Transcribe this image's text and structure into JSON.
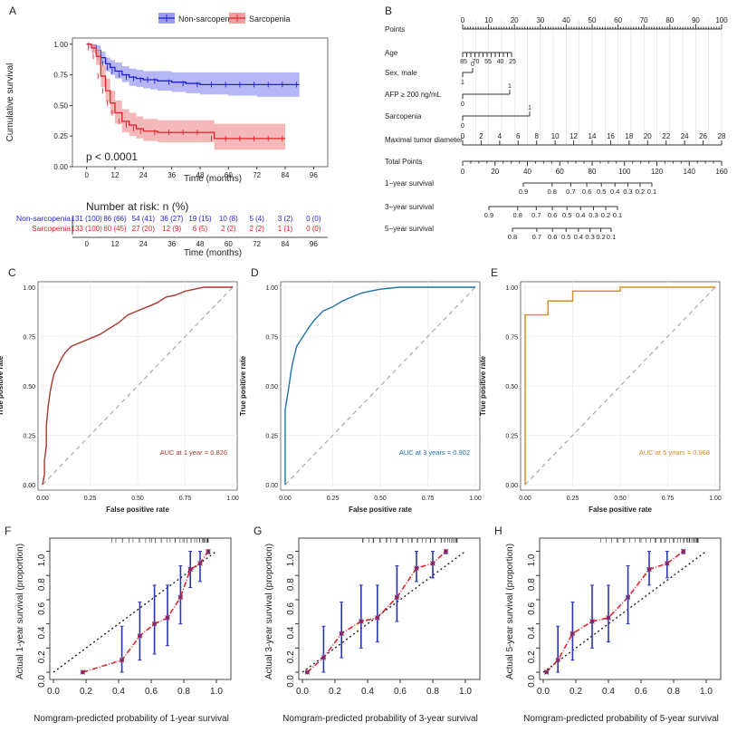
{
  "panels": {
    "A": "A",
    "B": "B",
    "C": "C",
    "D": "D",
    "E": "E",
    "F": "F",
    "G": "G",
    "H": "H"
  },
  "colors": {
    "blue": "#1f1fd6",
    "red": "#e0232a",
    "blue_band": "#9e9ef0",
    "red_band": "#f2a0a0",
    "roc1": "#a8372c",
    "roc3": "#2072a6",
    "roc5": "#d08b22",
    "calib_red": "#e0232a",
    "calib_blue": "#2a35b0"
  },
  "chart_data": [
    {
      "id": "km",
      "type": "line",
      "panel": "A",
      "legend": [
        "Non-sarcopenia",
        "Sarcopenia"
      ],
      "xlabel": "Time (months)",
      "ylabel": "Cumulative survival",
      "xticks": [
        0,
        12,
        24,
        36,
        48,
        60,
        72,
        84,
        96
      ],
      "yticks": [
        "0.00",
        "0.25",
        "0.50",
        "0.75",
        "1.00"
      ],
      "xlim": [
        -6,
        102
      ],
      "ylim": [
        0,
        1.05
      ],
      "pvalue": "p < 0.0001",
      "series": [
        {
          "name": "Non-sarcopenia",
          "x": [
            0,
            2,
            4,
            6,
            8,
            10,
            12,
            15,
            18,
            21,
            24,
            27,
            30,
            36,
            42,
            48,
            54,
            60,
            66,
            72,
            78,
            84,
            90
          ],
          "y": [
            1.0,
            0.99,
            0.95,
            0.89,
            0.84,
            0.81,
            0.78,
            0.75,
            0.73,
            0.72,
            0.71,
            0.71,
            0.7,
            0.69,
            0.68,
            0.67,
            0.67,
            0.67,
            0.67,
            0.67,
            0.67,
            0.67,
            0.67
          ],
          "lo": [
            1.0,
            0.97,
            0.91,
            0.84,
            0.78,
            0.75,
            0.72,
            0.69,
            0.66,
            0.65,
            0.64,
            0.63,
            0.62,
            0.61,
            0.6,
            0.59,
            0.59,
            0.58,
            0.58,
            0.57,
            0.57,
            0.57,
            0.57
          ],
          "hi": [
            1.0,
            1.0,
            0.99,
            0.94,
            0.89,
            0.87,
            0.85,
            0.82,
            0.8,
            0.79,
            0.78,
            0.78,
            0.78,
            0.77,
            0.77,
            0.77,
            0.77,
            0.77,
            0.77,
            0.77,
            0.77,
            0.77,
            0.77
          ]
        },
        {
          "name": "Sarcopenia",
          "x": [
            0,
            2,
            4,
            6,
            8,
            10,
            12,
            15,
            18,
            21,
            24,
            30,
            36,
            42,
            48,
            54,
            60,
            66,
            72,
            78,
            84
          ],
          "y": [
            1.0,
            0.97,
            0.9,
            0.74,
            0.62,
            0.52,
            0.44,
            0.37,
            0.34,
            0.31,
            0.29,
            0.28,
            0.28,
            0.28,
            0.28,
            0.23,
            0.23,
            0.23,
            0.23,
            0.23,
            0.23
          ],
          "lo": [
            1.0,
            0.93,
            0.83,
            0.65,
            0.53,
            0.43,
            0.35,
            0.28,
            0.25,
            0.23,
            0.21,
            0.2,
            0.2,
            0.2,
            0.2,
            0.14,
            0.14,
            0.14,
            0.14,
            0.14,
            0.14
          ],
          "hi": [
            1.0,
            1.0,
            0.96,
            0.83,
            0.72,
            0.62,
            0.54,
            0.47,
            0.44,
            0.41,
            0.39,
            0.38,
            0.38,
            0.38,
            0.38,
            0.35,
            0.35,
            0.35,
            0.35,
            0.35,
            0.35
          ]
        }
      ],
      "risk_table": {
        "title": "Number at risk: n (%)",
        "rows": [
          {
            "name": "Non-sarcopenia",
            "values": [
              "131 (100)",
              "86 (66)",
              "54 (41)",
              "36 (27)",
              "19 (15)",
              "10 (8)",
              "5 (4)",
              "3 (2)",
              "0 (0)"
            ]
          },
          {
            "name": "Sarcopenia",
            "values": [
              "133 (100)",
              "60 (45)",
              "27 (20)",
              "12 (9)",
              "6 (5)",
              "2 (2)",
              "2 (2)",
              "1 (1)",
              "0 (0)"
            ]
          }
        ],
        "xlabel": "Time (months)"
      }
    },
    {
      "id": "nomogram",
      "type": "table",
      "panel": "B",
      "rows": [
        {
          "label": "Points",
          "ticks": [
            "0",
            "10",
            "20",
            "30",
            "40",
            "50",
            "60",
            "70",
            "80",
            "90",
            "100"
          ]
        },
        {
          "label": "Age",
          "ticks": [
            "85",
            "70",
            "55",
            "40",
            "25"
          ]
        },
        {
          "label": "Sex, male",
          "ticks": [
            "1",
            "0"
          ]
        },
        {
          "label": "AFP ≥ 200 ng/mL",
          "ticks": [
            "0",
            "1"
          ]
        },
        {
          "label": "Sarcopenia",
          "ticks": [
            "0",
            "1"
          ]
        },
        {
          "label": "Maximal tumor diameter",
          "ticks": [
            "0",
            "2",
            "4",
            "6",
            "8",
            "10",
            "12",
            "14",
            "16",
            "18",
            "20",
            "22",
            "24",
            "26",
            "28"
          ]
        },
        {
          "label": "Total Points",
          "ticks": [
            "0",
            "20",
            "40",
            "60",
            "80",
            "100",
            "120",
            "140",
            "160"
          ]
        },
        {
          "label": "1−year survival",
          "ticks": [
            "0.9",
            "0.8",
            "0.7",
            "0.6",
            "0.5",
            "0.4",
            "0.3",
            "0.2",
            "0.1"
          ]
        },
        {
          "label": "3−year survival",
          "ticks": [
            "0.9",
            "0.8",
            "0.7",
            "0.6",
            "0.5",
            "0.4",
            "0.3",
            "0.2",
            "0.1"
          ]
        },
        {
          "label": "5−year survival",
          "ticks": [
            "0.8",
            "0.7",
            "0.6",
            "0.5",
            "0.4",
            "0.3",
            "0.2",
            "0.1"
          ]
        }
      ]
    },
    {
      "id": "roc1",
      "type": "line",
      "panel": "C",
      "xlabel": "False positive rate",
      "ylabel": "True positive rate",
      "ticks": [
        "0.00",
        "0.25",
        "0.50",
        "0.75",
        "1.00"
      ],
      "auc": "AUC at 1 year = 0.826",
      "x": [
        0,
        0.01,
        0.01,
        0.02,
        0.02,
        0.03,
        0.04,
        0.05,
        0.06,
        0.08,
        0.1,
        0.12,
        0.15,
        0.2,
        0.25,
        0.3,
        0.35,
        0.4,
        0.45,
        0.5,
        0.55,
        0.6,
        0.65,
        0.7,
        0.75,
        0.8,
        0.85,
        0.9,
        1.0
      ],
      "y": [
        0,
        0.05,
        0.12,
        0.2,
        0.3,
        0.4,
        0.47,
        0.52,
        0.56,
        0.6,
        0.64,
        0.67,
        0.7,
        0.72,
        0.74,
        0.76,
        0.79,
        0.82,
        0.86,
        0.88,
        0.9,
        0.92,
        0.95,
        0.96,
        0.98,
        0.99,
        1.0,
        1.0,
        1.0
      ]
    },
    {
      "id": "roc3",
      "type": "line",
      "panel": "D",
      "xlabel": "False positive rate",
      "ylabel": "True positive rate",
      "ticks": [
        "0.00",
        "0.25",
        "0.50",
        "0.75",
        "1.00"
      ],
      "auc": "AUC at 3 years = 0.902",
      "x": [
        0,
        0,
        0.01,
        0.02,
        0.03,
        0.04,
        0.05,
        0.06,
        0.08,
        0.1,
        0.12,
        0.15,
        0.18,
        0.2,
        0.25,
        0.3,
        0.35,
        0.4,
        0.45,
        0.5,
        0.6,
        0.7,
        0.8,
        1.0
      ],
      "y": [
        0,
        0.38,
        0.44,
        0.5,
        0.57,
        0.62,
        0.66,
        0.7,
        0.73,
        0.76,
        0.79,
        0.83,
        0.86,
        0.88,
        0.9,
        0.93,
        0.95,
        0.97,
        0.98,
        0.99,
        1.0,
        1.0,
        1.0,
        1.0
      ]
    },
    {
      "id": "roc5",
      "type": "line",
      "panel": "E",
      "xlabel": "False positive rate",
      "ylabel": "True positive rate",
      "ticks": [
        "0.00",
        "0.25",
        "0.50",
        "0.75",
        "1.00"
      ],
      "auc": "AUC at 5 years = 0.968",
      "x": [
        0,
        0,
        0,
        0.12,
        0.12,
        0.25,
        0.25,
        0.5,
        0.5,
        1.0
      ],
      "y": [
        0,
        0.7,
        0.86,
        0.86,
        0.93,
        0.93,
        0.98,
        0.98,
        1.0,
        1.0
      ]
    },
    {
      "id": "cal1",
      "type": "scatter",
      "panel": "F",
      "xlabel": "Nomgram-predicted probability of 1-year survival",
      "ylabel": "Actual 1-year survival (proportion)",
      "ticks": [
        "0.0",
        "0.2",
        "0.4",
        "0.6",
        "0.8",
        "1.0"
      ],
      "x": [
        0.18,
        0.42,
        0.53,
        0.62,
        0.7,
        0.78,
        0.84,
        0.9,
        0.95
      ],
      "y": [
        0.0,
        0.1,
        0.3,
        0.4,
        0.45,
        0.62,
        0.85,
        0.9,
        1.0
      ],
      "lo": [
        0.0,
        0.0,
        0.1,
        0.15,
        0.22,
        0.4,
        0.7,
        0.75,
        0.98
      ],
      "hi": [
        0.0,
        0.38,
        0.58,
        0.72,
        0.72,
        0.88,
        1.0,
        1.0,
        1.0
      ]
    },
    {
      "id": "cal3",
      "type": "scatter",
      "panel": "G",
      "xlabel": "Nomgram-predicted probability of 3-year survival",
      "ylabel": "Actual 3-year survival (proportion)",
      "ticks": [
        "0.0",
        "0.2",
        "0.4",
        "0.6",
        "0.8",
        "1.0"
      ],
      "x": [
        0.03,
        0.13,
        0.24,
        0.36,
        0.46,
        0.58,
        0.7,
        0.8,
        0.88
      ],
      "y": [
        0.0,
        0.12,
        0.32,
        0.42,
        0.45,
        0.62,
        0.86,
        0.9,
        1.0
      ],
      "lo": [
        0.0,
        0.0,
        0.12,
        0.2,
        0.25,
        0.42,
        0.75,
        0.78,
        0.98
      ],
      "hi": [
        0.0,
        0.38,
        0.58,
        0.72,
        0.72,
        0.88,
        1.0,
        1.0,
        1.0
      ]
    },
    {
      "id": "cal5",
      "type": "scatter",
      "panel": "H",
      "xlabel": "Nomgram-predicted probability of 5-year survival",
      "ylabel": "Actual 5-year survival (proportion)",
      "ticks": [
        "0.0",
        "0.2",
        "0.4",
        "0.6",
        "0.8",
        "1.0"
      ],
      "x": [
        0.02,
        0.09,
        0.18,
        0.3,
        0.4,
        0.52,
        0.65,
        0.76,
        0.86
      ],
      "y": [
        0.0,
        0.1,
        0.32,
        0.42,
        0.45,
        0.62,
        0.85,
        0.9,
        1.0
      ],
      "lo": [
        0.0,
        0.0,
        0.1,
        0.2,
        0.25,
        0.4,
        0.72,
        0.78,
        0.98
      ],
      "hi": [
        0.0,
        0.38,
        0.58,
        0.72,
        0.72,
        0.88,
        1.0,
        1.0,
        1.0
      ]
    }
  ]
}
